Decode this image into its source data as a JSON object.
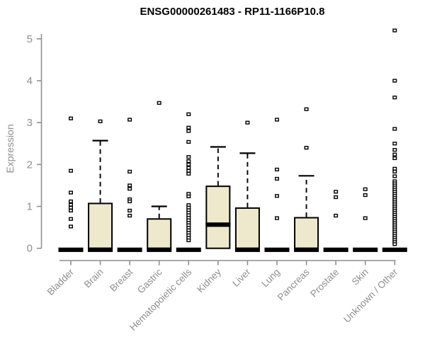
{
  "chart_data": {
    "type": "boxplot",
    "title": "ENSG00000261483 - RP11-1166P10.8",
    "ylabel": "Expression",
    "xlabel": "",
    "ylim": [
      0,
      5.3
    ],
    "yticks": [
      0,
      1,
      2,
      3,
      4,
      5
    ],
    "grid": false,
    "legend": "none",
    "colors": {
      "box_fill": "#EEE8CD",
      "box_border": "#000000",
      "median": "#000000",
      "axis": "#8f8f8f",
      "tick_text": "#8f8f8f",
      "title_text": "#000000",
      "outlier_fill": "#ffffff",
      "outlier_border": "#000000"
    },
    "categories": [
      "Bladder",
      "Brain",
      "Breast",
      "Gastric",
      "Hematopoietic cells",
      "Kidney",
      "Liver",
      "Lung",
      "Pancreas",
      "Prostate",
      "Skin",
      "Unknown / Other"
    ],
    "boxes": [
      {
        "category": "Bladder",
        "q1": 0,
        "median": 0,
        "q3": 0,
        "whisker_low": 0,
        "whisker_high": 0,
        "outliers": [
          3.1,
          1.85,
          1.33,
          1.12,
          1.04,
          0.97,
          0.9,
          0.7,
          0.52
        ]
      },
      {
        "category": "Brain",
        "q1": 0,
        "median": 0,
        "q3": 1.07,
        "whisker_low": 0,
        "whisker_high": 2.57,
        "outliers": [
          3.03
        ]
      },
      {
        "category": "Breast",
        "q1": 0,
        "median": 0,
        "q3": 0,
        "whisker_low": 0,
        "whisker_high": 0,
        "outliers": [
          3.07,
          1.83,
          1.5,
          1.42,
          1.17,
          1.12,
          0.9,
          0.78
        ]
      },
      {
        "category": "Gastric",
        "q1": 0,
        "median": 0,
        "q3": 0.7,
        "whisker_low": 0,
        "whisker_high": 1.0,
        "outliers": [
          3.47
        ]
      },
      {
        "category": "Hematopoietic cells",
        "q1": 0,
        "median": 0,
        "q3": 0,
        "whisker_low": 0,
        "whisker_high": 0,
        "outliers": [
          3.2,
          2.88,
          2.8,
          2.54,
          2.18,
          2.08,
          2.0,
          1.92,
          1.85,
          1.78,
          1.3,
          1.24,
          1.03,
          0.97,
          0.91,
          0.85,
          0.79,
          0.73,
          0.67,
          0.61,
          0.55,
          0.49,
          0.43,
          0.37,
          0.31,
          0.25,
          0.19
        ]
      },
      {
        "category": "Kidney",
        "q1": 0,
        "median": 0.6,
        "q3": 1.48,
        "whisker_low": 0,
        "whisker_high": 2.42,
        "outliers": []
      },
      {
        "category": "Liver",
        "q1": 0,
        "median": 0,
        "q3": 0.96,
        "whisker_low": 0,
        "whisker_high": 2.27,
        "outliers": [
          3.0
        ]
      },
      {
        "category": "Lung",
        "q1": 0,
        "median": 0,
        "q3": 0,
        "whisker_low": 0,
        "whisker_high": 0,
        "outliers": [
          3.07,
          1.88,
          1.66,
          1.25,
          0.72
        ]
      },
      {
        "category": "Pancreas",
        "q1": 0,
        "median": 0,
        "q3": 0.73,
        "whisker_low": 0,
        "whisker_high": 1.73,
        "outliers": [
          3.32,
          2.4
        ]
      },
      {
        "category": "Prostate",
        "q1": 0,
        "median": 0,
        "q3": 0,
        "whisker_low": 0,
        "whisker_high": 0,
        "outliers": [
          1.35,
          1.22,
          0.78
        ]
      },
      {
        "category": "Skin",
        "q1": 0,
        "median": 0,
        "q3": 0,
        "whisker_low": 0,
        "whisker_high": 0,
        "outliers": [
          1.41,
          1.27,
          0.72
        ]
      },
      {
        "category": "Unknown / Other",
        "q1": 0,
        "median": 0,
        "q3": 0,
        "whisker_low": 0,
        "whisker_high": 0,
        "outliers": [
          5.2,
          4.0,
          3.6,
          2.85,
          2.5,
          2.35,
          2.24,
          2.15,
          1.9,
          1.83,
          1.72,
          1.6,
          1.55,
          1.5,
          1.45,
          1.4,
          1.35,
          1.3,
          1.25,
          1.2,
          1.15,
          1.1,
          1.05,
          1.0,
          0.95,
          0.9,
          0.85,
          0.8,
          0.75,
          0.7,
          0.65,
          0.6,
          0.55,
          0.5,
          0.45,
          0.4,
          0.35,
          0.3,
          0.25,
          0.2,
          0.15,
          0.1
        ]
      }
    ]
  }
}
